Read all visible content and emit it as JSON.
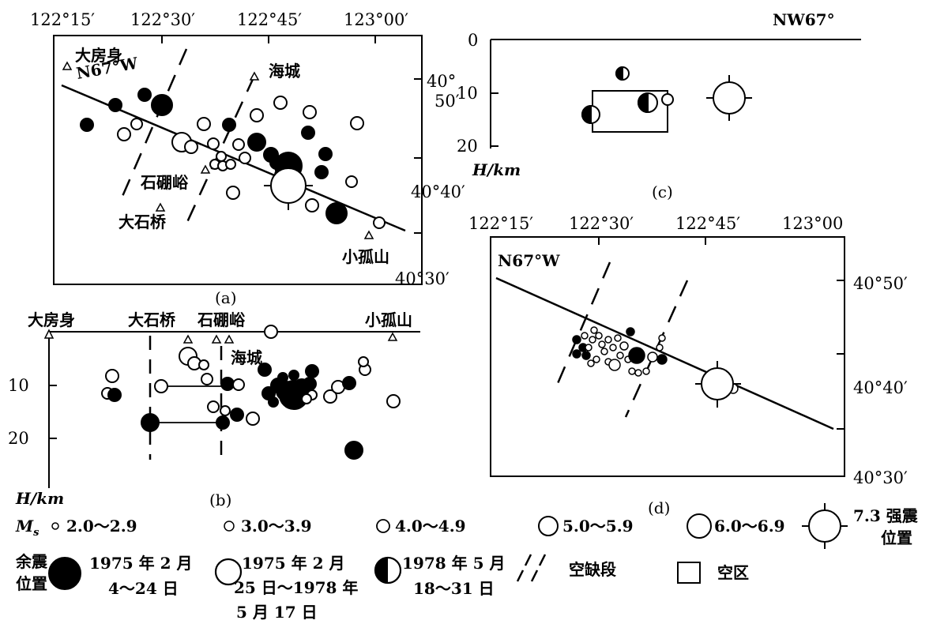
{
  "panel_a": {
    "caption": "(a)",
    "lon_labels": [
      "122°15′",
      "122°30′",
      "122°45′",
      "123°00′"
    ],
    "lat_labels": [
      "40°",
      "50′",
      "40°40′",
      "40°30′"
    ],
    "strike_label": "N67°W",
    "places": [
      "大房身",
      "海城",
      "石硼峪",
      "大石桥",
      "小孤山"
    ]
  },
  "panel_b": {
    "caption": "(b)",
    "depth_ticks": [
      "10",
      "20"
    ],
    "axis_label": "H/km",
    "places": [
      "大房身",
      "大石桥",
      "石硼峪",
      "小孤山",
      "海城"
    ]
  },
  "panel_c": {
    "caption": "(c)",
    "title": "NW67°",
    "depth_ticks": [
      "0",
      "10",
      "20"
    ],
    "axis_label": "H/km"
  },
  "panel_d": {
    "caption": "(d)",
    "lon_labels": [
      "122°15′",
      "122°30′",
      "122°45′",
      "123°00"
    ],
    "lat_labels": [
      "40°50′",
      "40°40′",
      "40°30′"
    ],
    "strike_label": "N67°W"
  },
  "legend": {
    "magnitude_symbol": "M",
    "magnitude_sub": "s",
    "magnitudes": [
      "2.0～2.9",
      "3.0～3.9",
      "4.0～4.9",
      "5.0～5.9",
      "6.0～6.9"
    ],
    "mainshock_line1": "7.3 强震",
    "mainshock_line2": "位置",
    "aftershock_line1": "余震",
    "aftershock_line2": "位置",
    "period1_line1": "1975 年 2 月",
    "period1_line2": "4～24 日",
    "period2_line1": "1975 年 2 月",
    "period2_line2": "25 日～1978 年",
    "period2_line3": "5 月 17 日",
    "period3_line1": "1978 年 5 月",
    "period3_line2": "18～31 日",
    "gap_label": "空缺段",
    "void_label": "空区"
  }
}
